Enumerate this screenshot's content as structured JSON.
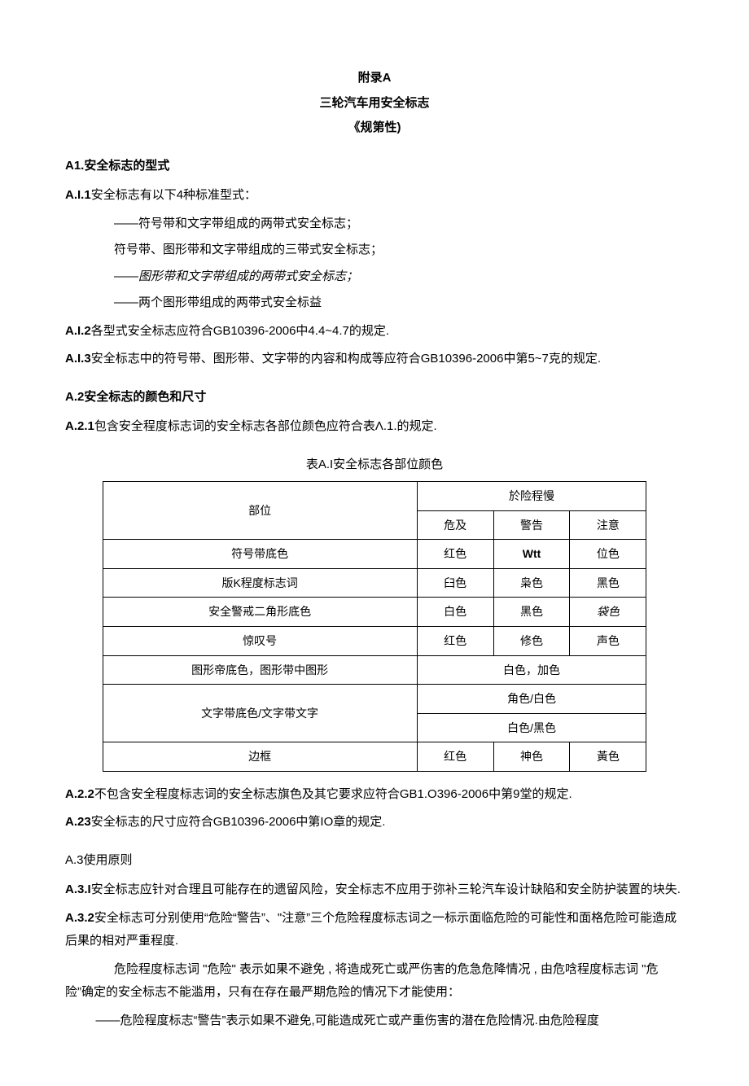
{
  "title_block": {
    "line1": "附录A",
    "line2": "三轮汽车用安全标志",
    "line3": "《规第性)"
  },
  "a1": {
    "heading": "A1.安全标志的型式",
    "a_i_1": "安全标志有以下4种标准型式：",
    "items": [
      "——符号带和文字带组成的两带式安全标志；",
      "­符号带、图形带和文字带组成的三带式安全标志；",
      "——图形带和文字带组成的两带式安全标志；",
      "——两个图形带组成的两带式安全标益"
    ],
    "a_i_2_num": "A.I.2",
    "a_i_2_text": "各型式安全标志应符合GB10396-2006中4.4~4.7的规定.",
    "a_i_3_num": "A.I.3",
    "a_i_3_text": "安全标志中的符号带、图形带、文字带的内容和构成等应符合GB10396-2006中第5~7克的规定."
  },
  "a2": {
    "heading": "A.2安全标志的颜色和尺寸",
    "a_2_1_num": "A.2.1",
    "a_2_1_text": "包含安全程度标志词的安全标志各部位颜色应符合表Λ.1.的规定.",
    "table_caption": "表A.I安全标志各部位颜色",
    "table": {
      "header_parts": "部位",
      "header_level": "於险程慢",
      "header_danger": "危及",
      "header_warning": "警告",
      "header_caution": "注意",
      "rows": [
        {
          "part": "符号带底色",
          "c1": "红色",
          "c2_bold": true,
          "c2": "Wtt",
          "c3": "位色"
        },
        {
          "part": "版K程度标志词",
          "c1": "臼色",
          "c2": "枭色",
          "c3": "黑色"
        },
        {
          "part": "安全警戒二角形底色",
          "c1": "白色",
          "c2": "黑色",
          "c3_italic": true,
          "c3": "袋色"
        },
        {
          "part": "惊叹号",
          "c1": "红色",
          "c2": "修色",
          "c3": "声色"
        }
      ],
      "row_graphic_part": "图形帝底色，图形带中图形",
      "row_graphic_span": "白色，加色",
      "row_text_part": "文字带底色/文字带文字",
      "row_text_span1": "角色/白色",
      "row_text_span2": "白色/黑色",
      "row_border_part": "边框",
      "row_border_c1": "红色",
      "row_border_c2": "神色",
      "row_border_c3": "黃色"
    },
    "a_2_2_num": "A.2.2",
    "a_2_2_text": "不包含安全程度标志词的安全标志旗色及其它要求应符合GB1.O396-2006中第9堂的规定.",
    "a_2_3_num": "A.23",
    "a_2_3_text": "安全标志的尺寸应符合GB10396-2006中第IO章的规定."
  },
  "a3": {
    "heading": "A.3使用原则",
    "a_3_i_num": "A.3.I",
    "a_3_i_text": "安全标志应针对合理且可能存在的遗留风险，安全标志不应用于弥补三轮汽车设计缺陷和安全防护装置的块失.",
    "a_3_2_num": "A.3.2",
    "a_3_2_text": "安全标志可分别使用“危险“警告”、\"注意”三个危险程度标志词之一标示面临危险的可能性和面格危险可能造成后果的相对严重程度.",
    "para_danger": "危险程度标志词 \"危险\" 表示如果不避免 , 将造成死亡或严伤害的危急危降情况 , 由危唅程度标志词 \"危险”确定的安全标志不能滥用，只有在存在最严期危险的情况下才能使用：",
    "para_warning": "——危险程度标志“警告”表示如果不避免,可能造成死亡或产重伤害的潜在危险情况.由危险程度"
  }
}
